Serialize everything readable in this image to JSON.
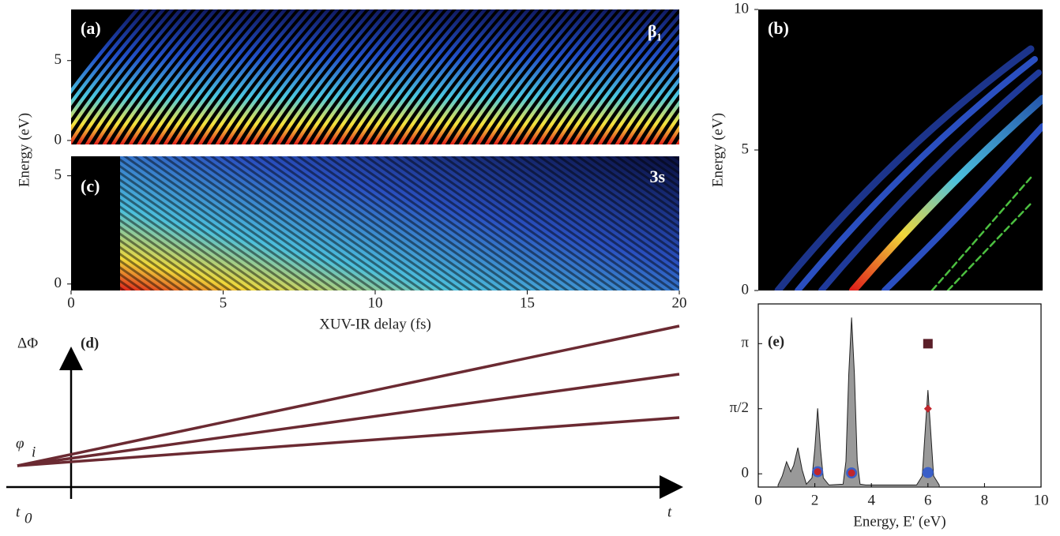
{
  "chart_data": [
    {
      "type": "heatmap",
      "panel_label": "(a)",
      "annotation": "β₁",
      "ylabel": "Energy (eV)",
      "ylim": [
        -0.25,
        8.2
      ],
      "yticks": [
        0,
        5
      ]
    },
    {
      "type": "heatmap",
      "panel_label": "(c)",
      "annotation": "3s",
      "xlabel": "XUV-IR delay (fs)",
      "xlim": [
        0,
        20
      ],
      "xticks": [
        0,
        5,
        10,
        15,
        20
      ],
      "ylim": [
        -0.3,
        5.9
      ],
      "yticks": [
        0,
        5
      ]
    },
    {
      "type": "heatmap",
      "panel_label": "(b)",
      "ylabel": "Energy (eV)",
      "ylim": [
        0,
        10
      ],
      "yticks": [
        0,
        5,
        10
      ]
    },
    {
      "type": "schematic",
      "panel_label": "(d)",
      "y_axis_label": "ΔΦ",
      "start_label": "φ",
      "start_subscript": "i",
      "x_start_label": "t",
      "x_start_subscript": "0",
      "x_axis_label": "t"
    },
    {
      "type": "scatter",
      "panel_label": "(e)",
      "xlabel": "Energy, E' (eV)",
      "xlim": [
        0,
        10
      ],
      "xticks": [
        0,
        2,
        4,
        6,
        8,
        10
      ],
      "ylim": [
        -0.32,
        4.1
      ],
      "yticks": [
        0,
        {
          "value": 1.5708,
          "label": "π/2"
        },
        {
          "value": 3.1416,
          "label": "π"
        }
      ],
      "spectrum": {
        "color": "#999999",
        "x": [
          0.7,
          0.85,
          1.0,
          1.15,
          1.25,
          1.4,
          1.55,
          1.7,
          1.9,
          2.0,
          2.1,
          2.2,
          2.3,
          2.5,
          3.0,
          3.1,
          3.2,
          3.3,
          3.4,
          3.5,
          3.6,
          3.8,
          5.6,
          5.8,
          5.9,
          6.0,
          6.1,
          6.2,
          6.4
        ],
        "values": [
          -0.27,
          -0.05,
          0.29,
          0.05,
          0.2,
          0.63,
          0.1,
          -0.25,
          -0.1,
          0.6,
          1.58,
          0.6,
          -0.1,
          -0.27,
          -0.25,
          0.3,
          2.4,
          3.77,
          2.4,
          0.3,
          -0.25,
          -0.27,
          -0.27,
          -0.05,
          1.0,
          2.02,
          1.0,
          -0.05,
          -0.27
        ]
      },
      "series": [
        {
          "marker": "circle",
          "color": "#3a5fc8",
          "x": [
            2.1,
            3.3,
            6.0
          ],
          "values": [
            0.05,
            0.02,
            0.03
          ]
        },
        {
          "marker": "dot",
          "color": "#c0262d",
          "x": [
            2.1,
            3.3
          ],
          "values": [
            0.05,
            0.02
          ]
        },
        {
          "marker": "diamond",
          "color": "#c0262d",
          "x": [
            6.0
          ],
          "values": [
            1.57
          ]
        },
        {
          "marker": "square",
          "color": "#5a1e28",
          "x": [
            6.0
          ],
          "values": [
            3.14
          ]
        }
      ]
    }
  ]
}
